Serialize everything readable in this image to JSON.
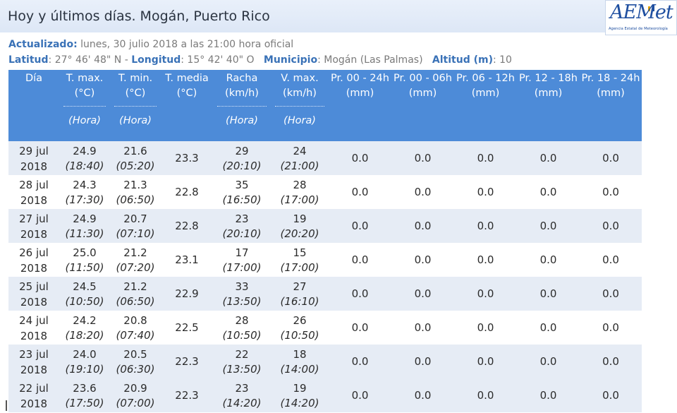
{
  "header": {
    "title": "Hoy y últimos días. Mogán, Puerto Rico",
    "logo_text": "AEMet",
    "logo_sub": "Agencia Estatal de Meteorología"
  },
  "meta": {
    "actualizado_label": "Actualizado:",
    "actualizado_value": "lunes, 30 julio 2018 a las 21:00 hora oficial",
    "latitud_label": "Latitud",
    "latitud_value": ": 27° 46' 48\" N - ",
    "longitud_label": "Longitud",
    "longitud_value": ": 15° 42' 40\" O",
    "municipio_label": "Municipio",
    "municipio_value": ":  Mogán (Las Palmas)",
    "altitud_label": "Altitud (m)",
    "altitud_value": ": 10"
  },
  "columns": [
    {
      "l1": "Día",
      "l2": "",
      "hora": ""
    },
    {
      "l1": "T. max.",
      "l2": "(°C)",
      "hora": "(Hora)"
    },
    {
      "l1": "T. min.",
      "l2": "(°C)",
      "hora": "(Hora)"
    },
    {
      "l1": "T. media",
      "l2": "(°C)",
      "hora": ""
    },
    {
      "l1": "Racha",
      "l2": "(km/h)",
      "hora": "(Hora)"
    },
    {
      "l1": "V. max.",
      "l2": "(km/h)",
      "hora": "(Hora)"
    },
    {
      "l1": "Pr. 00 - 24h",
      "l2": "(mm)",
      "hora": ""
    },
    {
      "l1": "Pr. 00 - 06h",
      "l2": "(mm)",
      "hora": ""
    },
    {
      "l1": "Pr. 06 - 12h",
      "l2": "(mm)",
      "hora": ""
    },
    {
      "l1": "Pr. 12 - 18h",
      "l2": "(mm)",
      "hora": ""
    },
    {
      "l1": "Pr. 18 - 24h",
      "l2": "(mm)",
      "hora": ""
    }
  ],
  "rows": [
    {
      "dia1": "29 jul",
      "dia2": "2018",
      "tmax": "24.9",
      "tmax_h": "(18:40)",
      "tmin": "21.6",
      "tmin_h": "(05:20)",
      "tmed": "23.3",
      "racha": "29",
      "racha_h": "(20:10)",
      "vmax": "24",
      "vmax_h": "(21:00)",
      "p1": "0.0",
      "p2": "0.0",
      "p3": "0.0",
      "p4": "0.0",
      "p5": "0.0"
    },
    {
      "dia1": "28 jul",
      "dia2": "2018",
      "tmax": "24.3",
      "tmax_h": "(17:30)",
      "tmin": "21.3",
      "tmin_h": "(06:50)",
      "tmed": "22.8",
      "racha": "35",
      "racha_h": "(16:50)",
      "vmax": "28",
      "vmax_h": "(17:00)",
      "p1": "0.0",
      "p2": "0.0",
      "p3": "0.0",
      "p4": "0.0",
      "p5": "0.0"
    },
    {
      "dia1": "27 jul",
      "dia2": "2018",
      "tmax": "24.9",
      "tmax_h": "(11:30)",
      "tmin": "20.7",
      "tmin_h": "(07:10)",
      "tmed": "22.8",
      "racha": "23",
      "racha_h": "(20:10)",
      "vmax": "19",
      "vmax_h": "(20:20)",
      "p1": "0.0",
      "p2": "0.0",
      "p3": "0.0",
      "p4": "0.0",
      "p5": "0.0"
    },
    {
      "dia1": "26 jul",
      "dia2": "2018",
      "tmax": "25.0",
      "tmax_h": "(11:50)",
      "tmin": "21.2",
      "tmin_h": "(07:20)",
      "tmed": "23.1",
      "racha": "17",
      "racha_h": "(17:00)",
      "vmax": "15",
      "vmax_h": "(17:00)",
      "p1": "0.0",
      "p2": "0.0",
      "p3": "0.0",
      "p4": "0.0",
      "p5": "0.0"
    },
    {
      "dia1": "25 jul",
      "dia2": "2018",
      "tmax": "24.5",
      "tmax_h": "(10:50)",
      "tmin": "21.2",
      "tmin_h": "(06:50)",
      "tmed": "22.9",
      "racha": "33",
      "racha_h": "(13:50)",
      "vmax": "27",
      "vmax_h": "(16:10)",
      "p1": "0.0",
      "p2": "0.0",
      "p3": "0.0",
      "p4": "0.0",
      "p5": "0.0"
    },
    {
      "dia1": "24 jul",
      "dia2": "2018",
      "tmax": "24.2",
      "tmax_h": "(18:20)",
      "tmin": "20.8",
      "tmin_h": "(07:40)",
      "tmed": "22.5",
      "racha": "28",
      "racha_h": "(10:50)",
      "vmax": "26",
      "vmax_h": "(10:50)",
      "p1": "0.0",
      "p2": "0.0",
      "p3": "0.0",
      "p4": "0.0",
      "p5": "0.0"
    },
    {
      "dia1": "23 jul",
      "dia2": "2018",
      "tmax": "24.0",
      "tmax_h": "(19:10)",
      "tmin": "20.5",
      "tmin_h": "(06:30)",
      "tmed": "22.3",
      "racha": "22",
      "racha_h": "(13:50)",
      "vmax": "18",
      "vmax_h": "(14:00)",
      "p1": "0.0",
      "p2": "0.0",
      "p3": "0.0",
      "p4": "0.0",
      "p5": "0.0"
    },
    {
      "dia1": "22 jul",
      "dia2": "2018",
      "tmax": "23.6",
      "tmax_h": "(17:50)",
      "tmin": "20.9",
      "tmin_h": "(07:00)",
      "tmed": "22.3",
      "racha": "23",
      "racha_h": "(14:20)",
      "vmax": "19",
      "vmax_h": "(14:20)",
      "p1": "0.0",
      "p2": "0.0",
      "p3": "0.0",
      "p4": "0.0",
      "p5": "0.0"
    }
  ]
}
